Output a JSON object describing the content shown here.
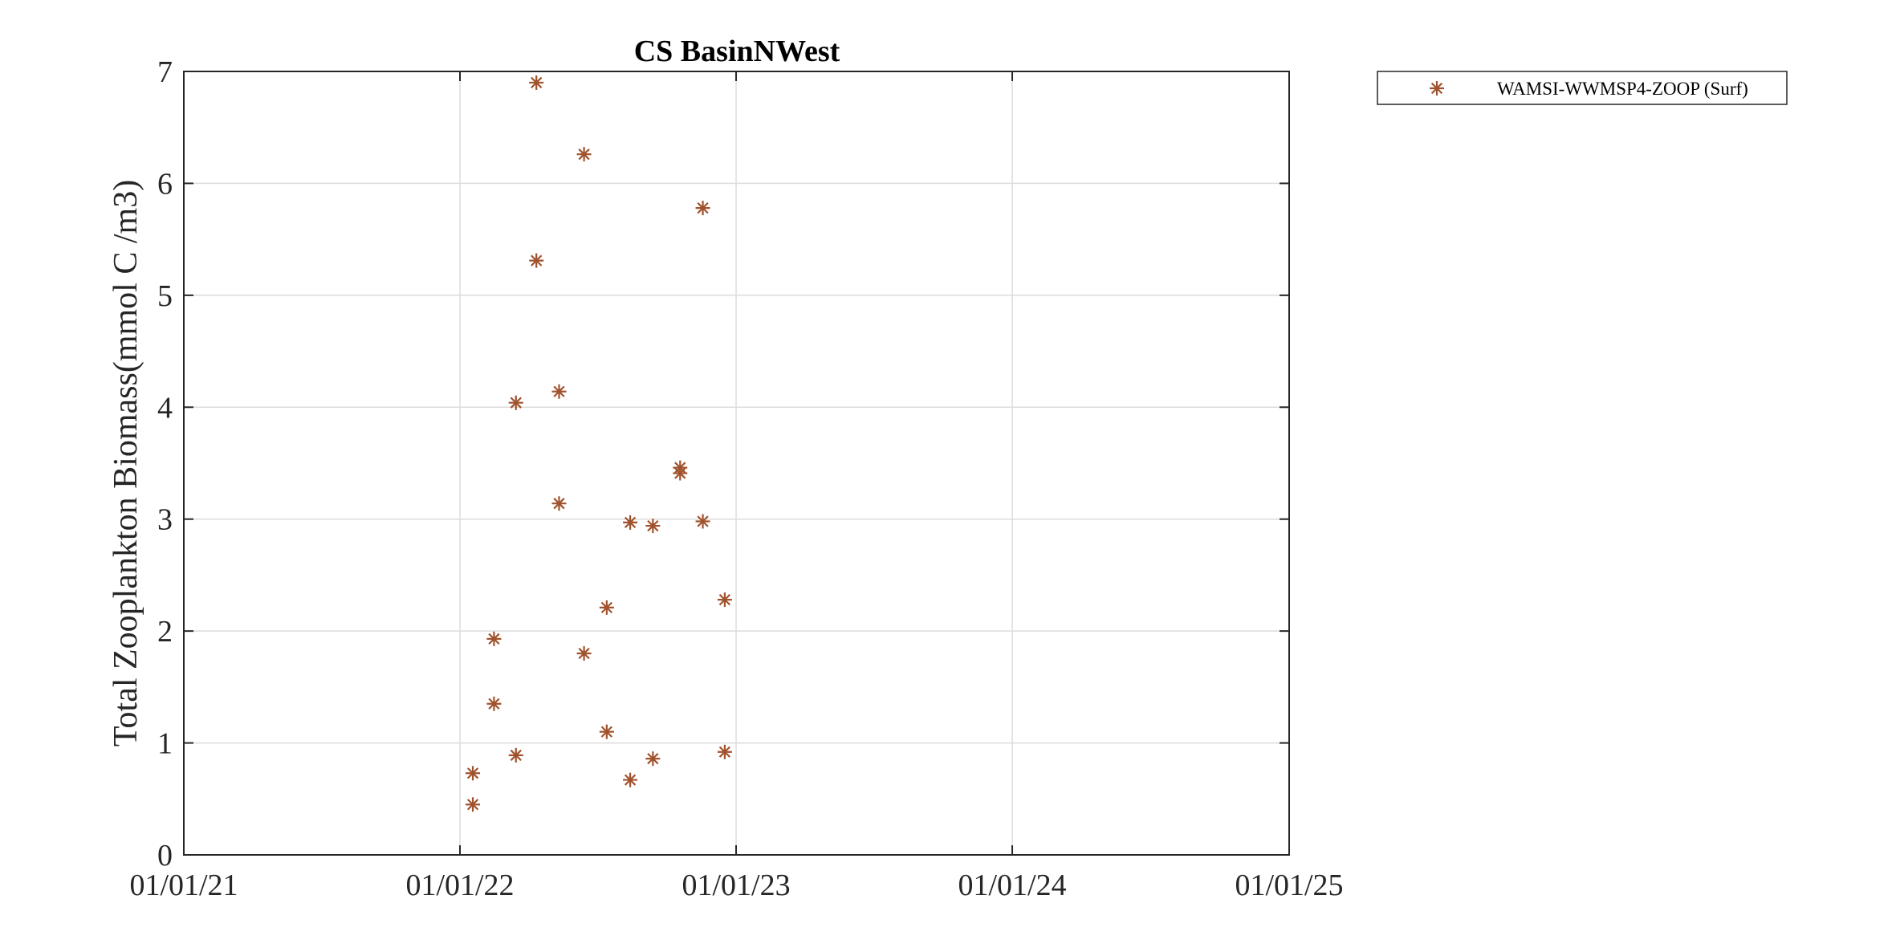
{
  "chart_data": {
    "type": "scatter",
    "title": "CS BasinNWest",
    "xlabel": "",
    "ylabel": "Total Zooplankton Biomass(mmol C /m3)",
    "xlim": [
      "2021-01-01",
      "2025-01-01"
    ],
    "ylim": [
      0,
      7
    ],
    "x_ticks": [
      "01/01/21",
      "01/01/22",
      "01/01/23",
      "01/01/24",
      "01/01/25"
    ],
    "x_tick_dates": [
      "2021-01-01",
      "2022-01-01",
      "2023-01-01",
      "2024-01-01",
      "2025-01-01"
    ],
    "y_ticks": [
      "0",
      "1",
      "2",
      "3",
      "4",
      "5",
      "6",
      "7"
    ],
    "grid": true,
    "legend_position": "outside top-right",
    "marker": "asterisk",
    "marker_color": "#A0522D",
    "series": [
      {
        "name": "WAMSI-WWMSP4-ZOOP (Surf)",
        "points": [
          {
            "x": "2022-01-18",
            "y": 0.73
          },
          {
            "x": "2022-01-18",
            "y": 0.45
          },
          {
            "x": "2022-02-15",
            "y": 1.93
          },
          {
            "x": "2022-02-15",
            "y": 1.35
          },
          {
            "x": "2022-03-16",
            "y": 4.04
          },
          {
            "x": "2022-03-16",
            "y": 0.89
          },
          {
            "x": "2022-04-12",
            "y": 6.9
          },
          {
            "x": "2022-04-12",
            "y": 5.31
          },
          {
            "x": "2022-05-12",
            "y": 4.14
          },
          {
            "x": "2022-05-12",
            "y": 3.14
          },
          {
            "x": "2022-06-14",
            "y": 6.26
          },
          {
            "x": "2022-06-14",
            "y": 1.8
          },
          {
            "x": "2022-07-14",
            "y": 2.21
          },
          {
            "x": "2022-07-14",
            "y": 1.1
          },
          {
            "x": "2022-08-14",
            "y": 2.97
          },
          {
            "x": "2022-08-14",
            "y": 0.67
          },
          {
            "x": "2022-09-13",
            "y": 2.94
          },
          {
            "x": "2022-09-13",
            "y": 0.86
          },
          {
            "x": "2022-10-19",
            "y": 3.46
          },
          {
            "x": "2022-10-19",
            "y": 3.41
          },
          {
            "x": "2022-11-18",
            "y": 5.78
          },
          {
            "x": "2022-11-18",
            "y": 2.98
          },
          {
            "x": "2022-12-17",
            "y": 2.28
          },
          {
            "x": "2022-12-17",
            "y": 0.92
          }
        ]
      }
    ]
  }
}
